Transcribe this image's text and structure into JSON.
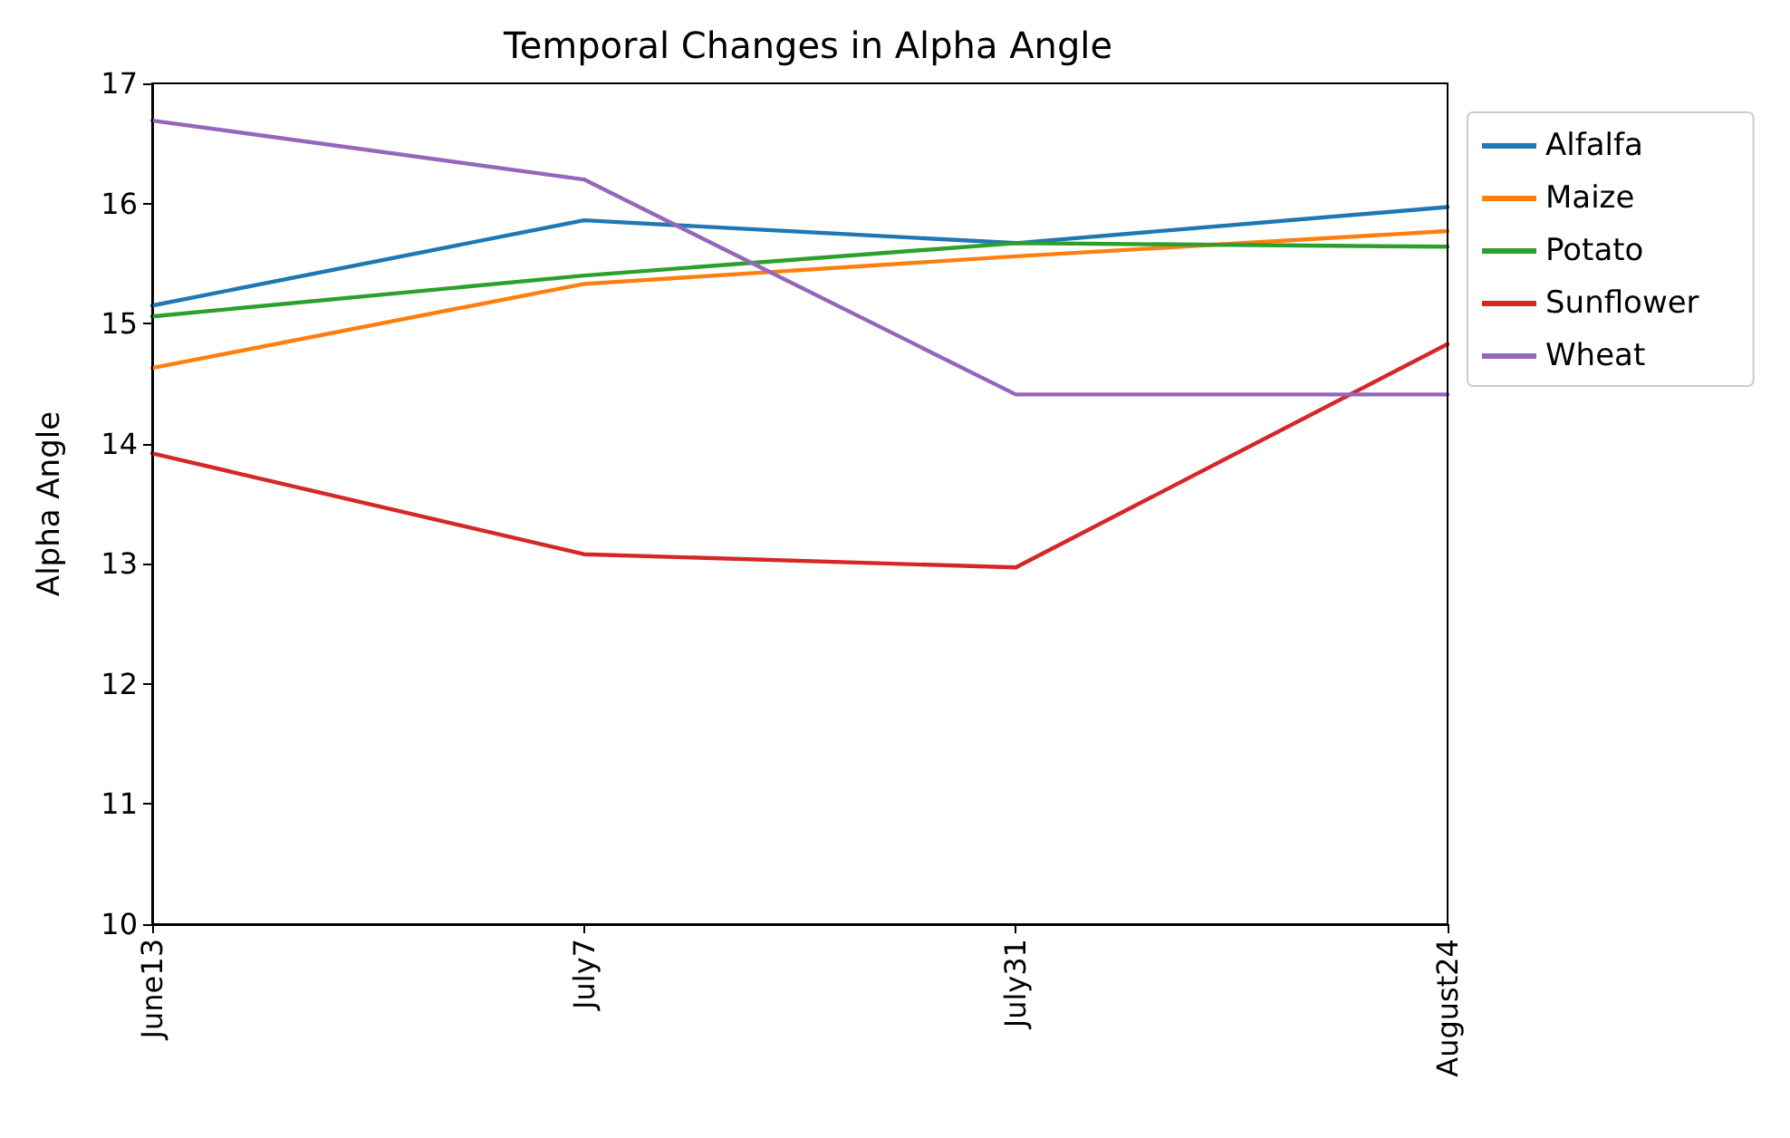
{
  "chart_data": {
    "type": "line",
    "title": "Temporal Changes in Alpha Angle",
    "ylabel": "Alpha Angle",
    "categories": [
      "June13",
      "July7",
      "July31",
      "August24"
    ],
    "series": [
      {
        "name": "Alfalfa",
        "color": "#1f77b4",
        "values": [
          15.15,
          15.86,
          15.67,
          15.97
        ]
      },
      {
        "name": "Maize",
        "color": "#ff7f0e",
        "values": [
          14.63,
          15.33,
          15.56,
          15.77
        ]
      },
      {
        "name": "Potato",
        "color": "#2ca02c",
        "values": [
          15.06,
          15.4,
          15.67,
          15.64
        ]
      },
      {
        "name": "Sunflower",
        "color": "#d62728",
        "values": [
          13.92,
          13.08,
          12.97,
          14.83
        ]
      },
      {
        "name": "Wheat",
        "color": "#9467bd",
        "values": [
          16.69,
          16.2,
          14.41,
          14.41
        ]
      }
    ],
    "ylim": [
      10,
      17
    ],
    "yticks": [
      10,
      11,
      12,
      13,
      14,
      15,
      16,
      17
    ],
    "grid": false,
    "legend": "top right",
    "marker": "none",
    "line_style": "solid"
  }
}
